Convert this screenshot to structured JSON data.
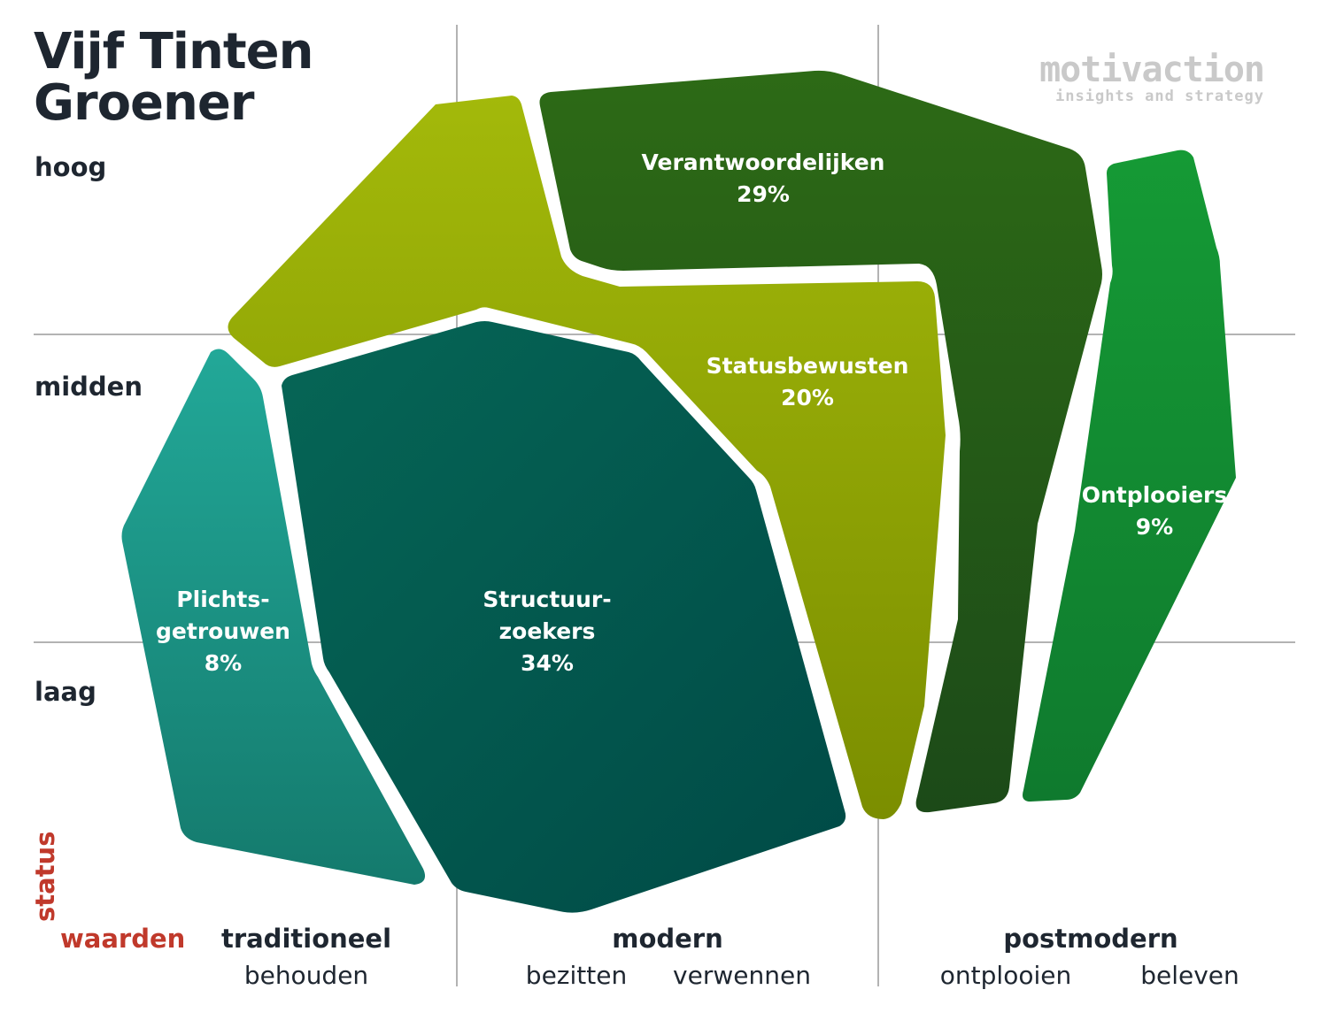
{
  "title": "Vijf Tinten Groener",
  "logo": {
    "brand": "motivaction",
    "tagline": "insights and strategy"
  },
  "y_axis": {
    "name": "status",
    "levels": [
      "hoog",
      "midden",
      "laag"
    ]
  },
  "x_axis": {
    "name": "waarden",
    "columns": [
      {
        "label": "traditioneel",
        "sub": [
          "behouden"
        ]
      },
      {
        "label": "modern",
        "sub": [
          "bezitten",
          "verwennen"
        ]
      },
      {
        "label": "postmodern",
        "sub": [
          "ontplooien",
          "beleven"
        ]
      }
    ]
  },
  "segments": [
    {
      "name": "Statusbewusten",
      "lines": [
        "Statusbewusten",
        "20%"
      ],
      "percent": 20,
      "color_top": "#a3b90a",
      "color_bottom": "#7b8e00"
    },
    {
      "name": "Verantwoordelijken",
      "lines": [
        "Verantwoordelijken",
        "29%"
      ],
      "percent": 29,
      "color_top": "#2d6a16",
      "color_bottom": "#1c4a18"
    },
    {
      "name": "Ontplooiers",
      "lines": [
        "Ontplooiers",
        "9%"
      ],
      "percent": 9,
      "color_top": "#159a35",
      "color_bottom": "#0f7a2e"
    },
    {
      "name": "Plichtsgetrouwen",
      "lines": [
        "Plichts-",
        "getrouwen",
        "8%"
      ],
      "percent": 8,
      "color_top": "#22a898",
      "color_bottom": "#147a6d"
    },
    {
      "name": "Structuurzoekers",
      "lines": [
        "Structuur-",
        "zoekers",
        "34%"
      ],
      "percent": 34,
      "color_top": "#066656",
      "color_bottom": "#004a46"
    }
  ]
}
